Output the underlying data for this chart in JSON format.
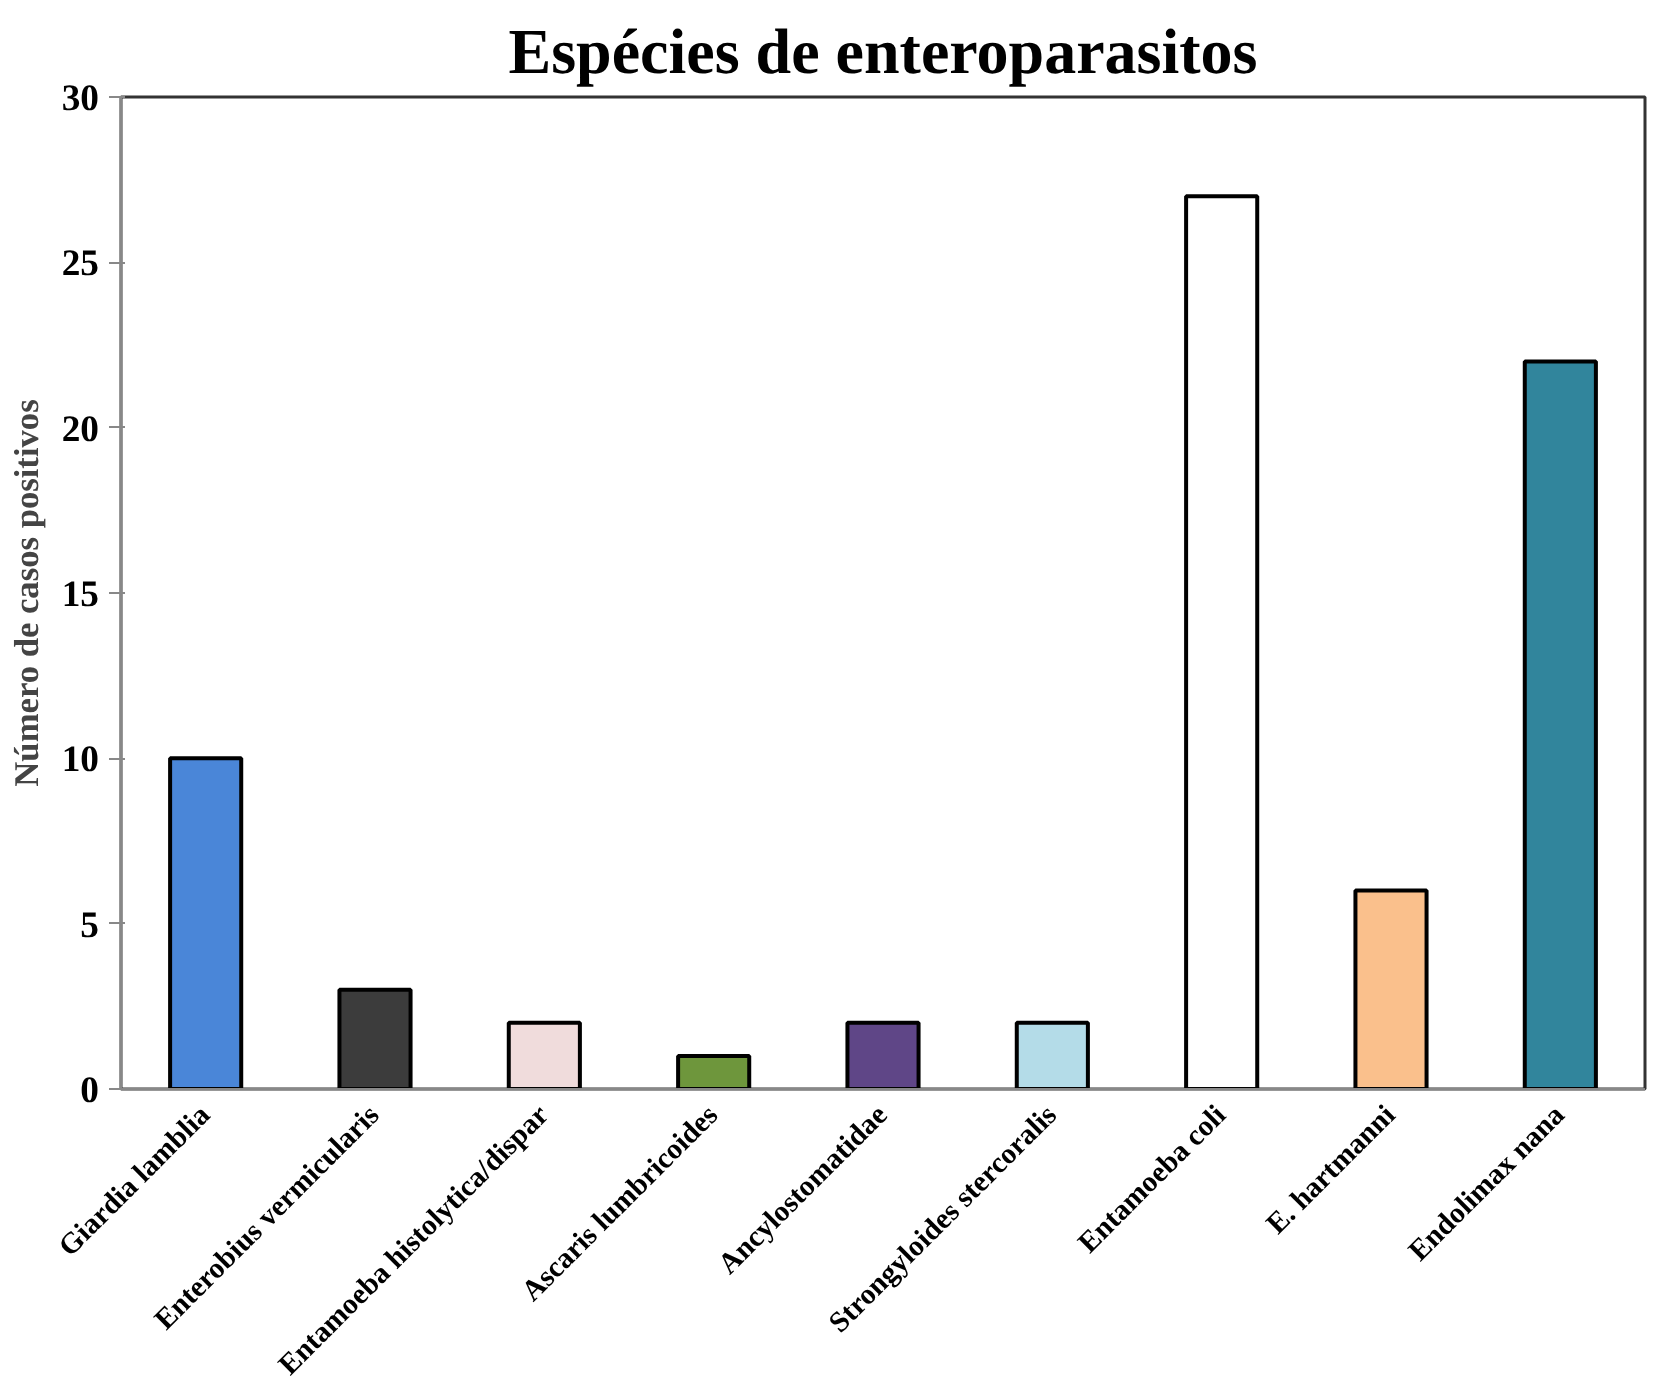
{
  "chart_data": {
    "type": "bar",
    "title": "Espécies de enteroparasitos",
    "ylabel": "Número de casos positivos",
    "categories": [
      "Giardia lamblia",
      "Enterobius vermicularis",
      "Entamoeba histolytica/dispar",
      "Ascaris lumbricoides",
      "Ancylostomatidae",
      "Strongyloides stercoralis",
      "Entamoeba coli",
      "E. hartmanni",
      "Endolimax nana"
    ],
    "values": [
      10,
      3,
      2,
      1,
      2,
      2,
      27,
      6,
      22
    ],
    "colors": [
      "#4a86d8",
      "#3c3c3c",
      "#f0dcdc",
      "#6e963c",
      "#5f4687",
      "#b4dce8",
      "#ffffff",
      "#fac08c",
      "#31859c"
    ],
    "ylim": [
      0,
      30
    ],
    "yticks": [
      0,
      5,
      10,
      15,
      20,
      25,
      30
    ],
    "grid": false
  }
}
